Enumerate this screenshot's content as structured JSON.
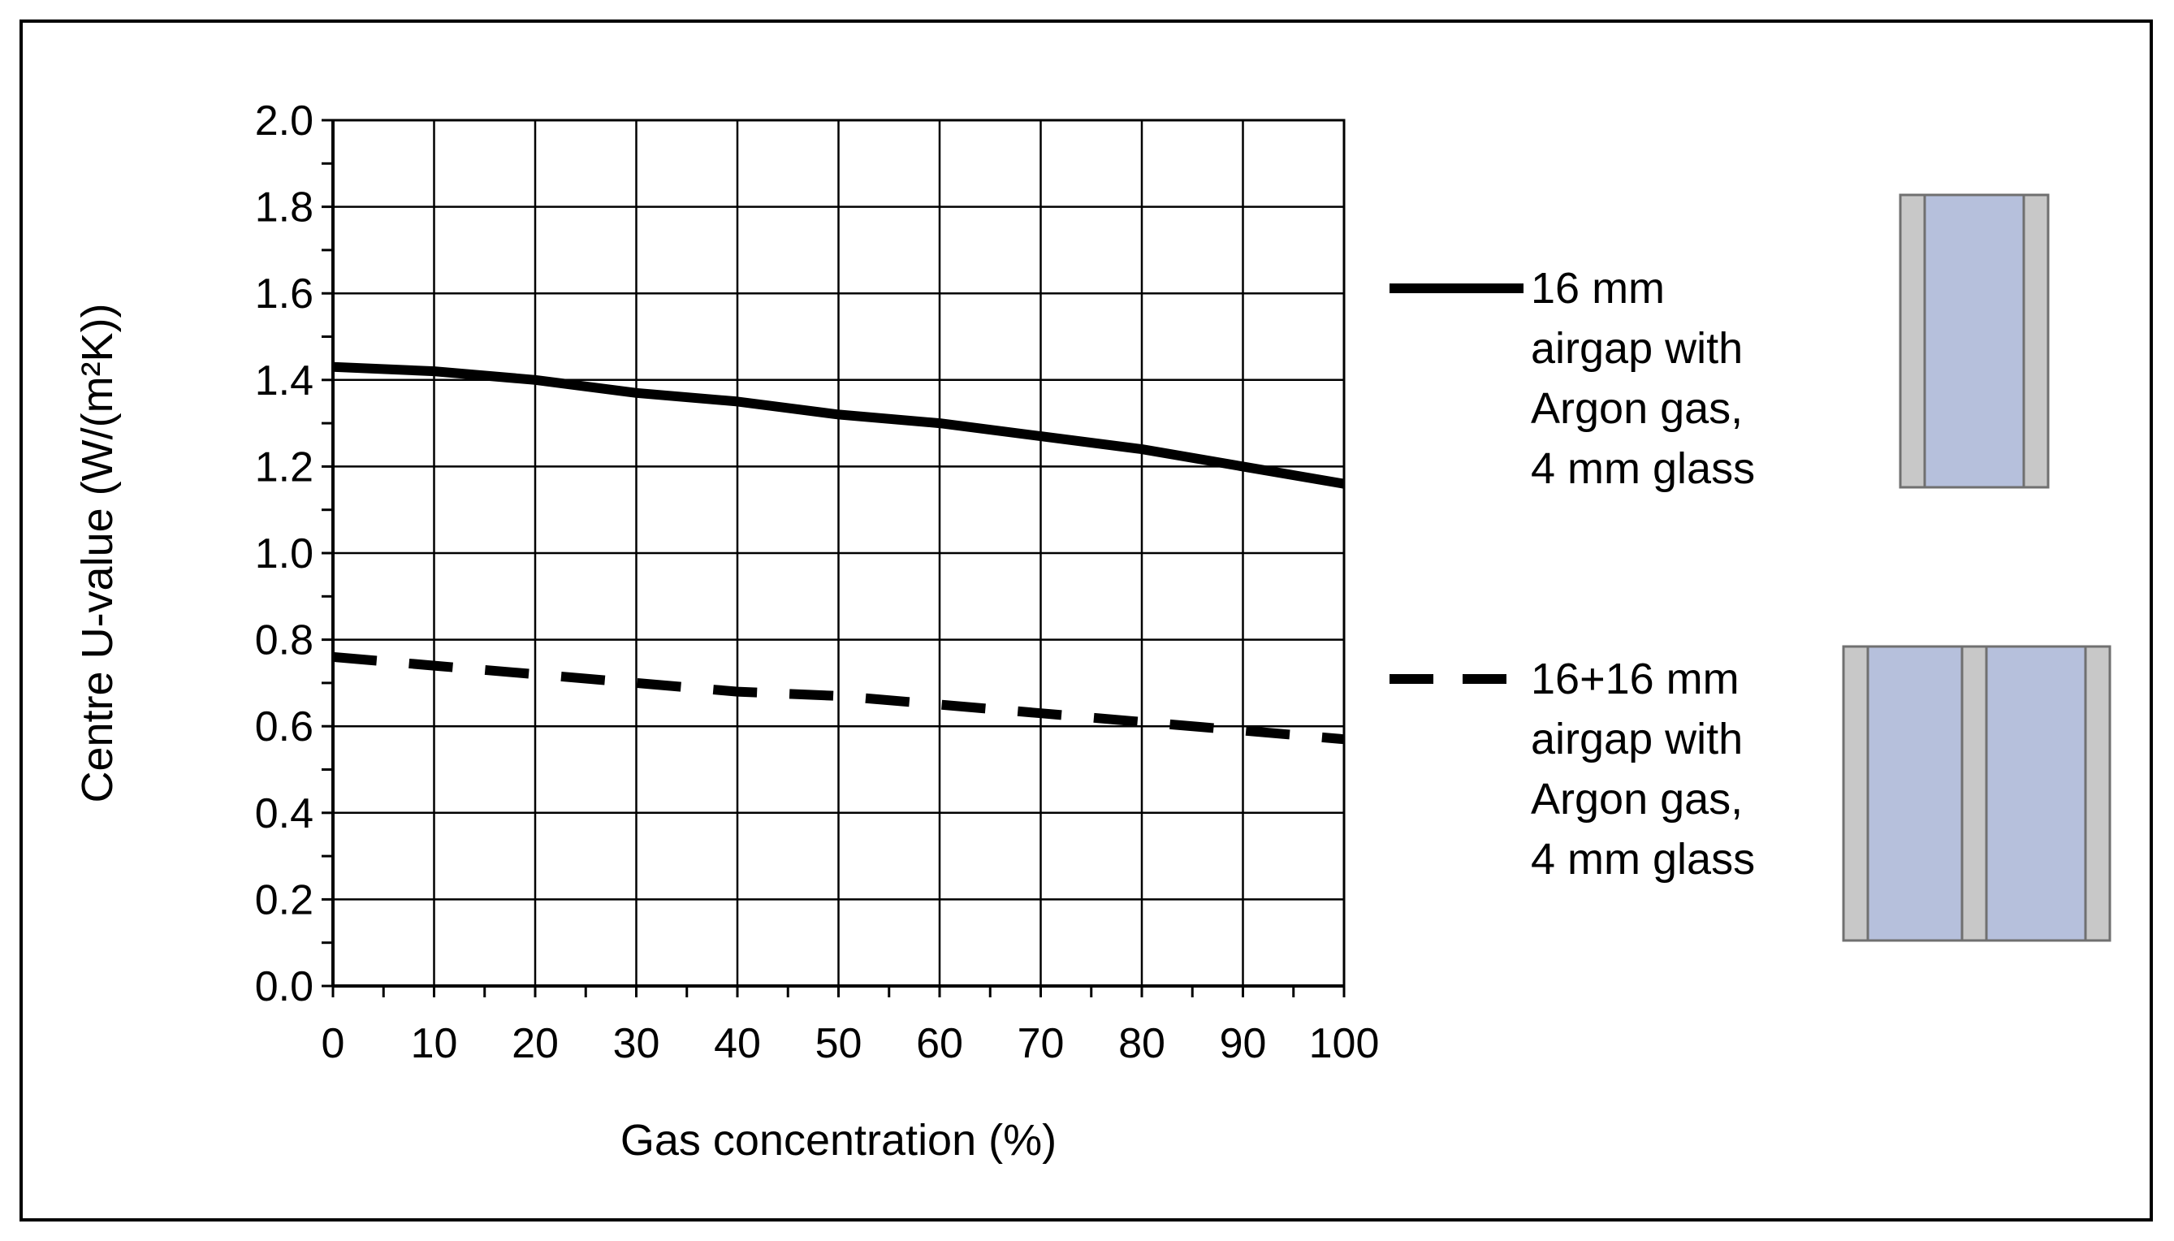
{
  "chart_data": {
    "type": "line",
    "title": "",
    "xlabel": "Gas concentration (%)",
    "ylabel": "Centre U-value (W/(m²K))",
    "xlim": [
      0,
      100
    ],
    "ylim": [
      0,
      2.0
    ],
    "x_ticks": [
      "0",
      "10",
      "20",
      "30",
      "40",
      "50",
      "60",
      "70",
      "80",
      "90",
      "100"
    ],
    "y_ticks": [
      "0.0",
      "0.2",
      "0.4",
      "0.6",
      "0.8",
      "1.0",
      "1.2",
      "1.4",
      "1.6",
      "1.8",
      "2.0"
    ],
    "grid": true,
    "legend_position": "right",
    "series": [
      {
        "name": "16 mm airgap with Argon gas, 4 mm glass",
        "name_lines": [
          "16 mm",
          "airgap with",
          "Argon gas,",
          "4 mm glass"
        ],
        "style": "solid",
        "color": "#000000",
        "x": [
          0,
          10,
          20,
          30,
          40,
          50,
          60,
          70,
          80,
          90,
          100
        ],
        "y": [
          1.43,
          1.42,
          1.4,
          1.37,
          1.35,
          1.32,
          1.3,
          1.27,
          1.24,
          1.2,
          1.16
        ]
      },
      {
        "name": "16+16 mm airgap with Argon gas, 4 mm glass",
        "name_lines": [
          "16+16 mm",
          "airgap with",
          "Argon gas,",
          "4 mm glass"
        ],
        "style": "dashed",
        "color": "#000000",
        "x": [
          0,
          10,
          20,
          30,
          40,
          50,
          60,
          70,
          80,
          90,
          100
        ],
        "y": [
          0.76,
          0.74,
          0.72,
          0.7,
          0.68,
          0.67,
          0.65,
          0.63,
          0.61,
          0.59,
          0.57
        ]
      }
    ],
    "glazing_colors": {
      "glass": "#c8c8c8",
      "gap": "#b6c0dc",
      "edge": "#707070"
    }
  }
}
